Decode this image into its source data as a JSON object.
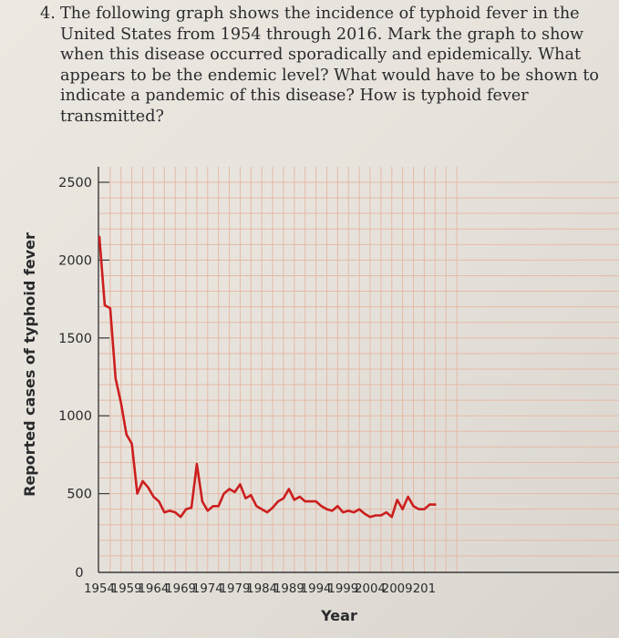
{
  "question": {
    "number": "4.",
    "text": "The following graph shows the incidence of typhoid fever in the United States from 1954 through 2016. Mark the graph to show when this disease occurred sporadically and epidemically. What appears to be the endemic level? What would have to be shown to indicate a pandemic of this disease? How is typhoid fever transmitted?"
  },
  "chart_data": {
    "type": "line",
    "title": "",
    "xlabel": "Year",
    "ylabel": "Reported cases of typhoid fever",
    "xlim": [
      1954,
      2016
    ],
    "ylim": [
      0,
      2500
    ],
    "yticks": [
      0,
      500,
      1000,
      1500,
      2000,
      2500
    ],
    "xticks": [
      "1954",
      "1959",
      "1964",
      "1969",
      "1974",
      "1979",
      "1984",
      "1989",
      "1994",
      "1999",
      "2004",
      "2009",
      "201"
    ],
    "grid": true,
    "colors": {
      "line": "#cc1e1e",
      "grid": "#e6b9a6",
      "axis": "#3a3a3a"
    },
    "series": [
      {
        "x": [
          1954,
          1955,
          1956,
          1957,
          1958,
          1959,
          1960,
          1961,
          1962,
          1963,
          1964,
          1965,
          1966,
          1967,
          1968,
          1969,
          1970,
          1971,
          1972,
          1973,
          1974,
          1975,
          1976,
          1977,
          1978,
          1979,
          1980,
          1981,
          1982,
          1983,
          1984,
          1985,
          1986,
          1987,
          1988,
          1989,
          1990,
          1991,
          1992,
          1993,
          1994,
          1995,
          1996,
          1997,
          1998,
          1999,
          2000,
          2001,
          2002,
          2003,
          2004,
          2005,
          2006,
          2007,
          2008,
          2009,
          2010,
          2011,
          2012,
          2013,
          2014,
          2015,
          2016
        ],
        "values": [
          2150,
          1710,
          1690,
          1240,
          1080,
          880,
          820,
          500,
          580,
          540,
          480,
          450,
          380,
          390,
          380,
          350,
          400,
          410,
          690,
          450,
          390,
          420,
          420,
          500,
          530,
          510,
          560,
          470,
          490,
          420,
          400,
          380,
          410,
          450,
          470,
          530,
          460,
          480,
          450,
          450,
          450,
          420,
          400,
          390,
          420,
          380,
          390,
          380,
          400,
          370,
          350,
          360,
          360,
          380,
          350,
          460,
          400,
          480,
          420,
          400,
          400,
          430,
          430
        ]
      }
    ]
  }
}
